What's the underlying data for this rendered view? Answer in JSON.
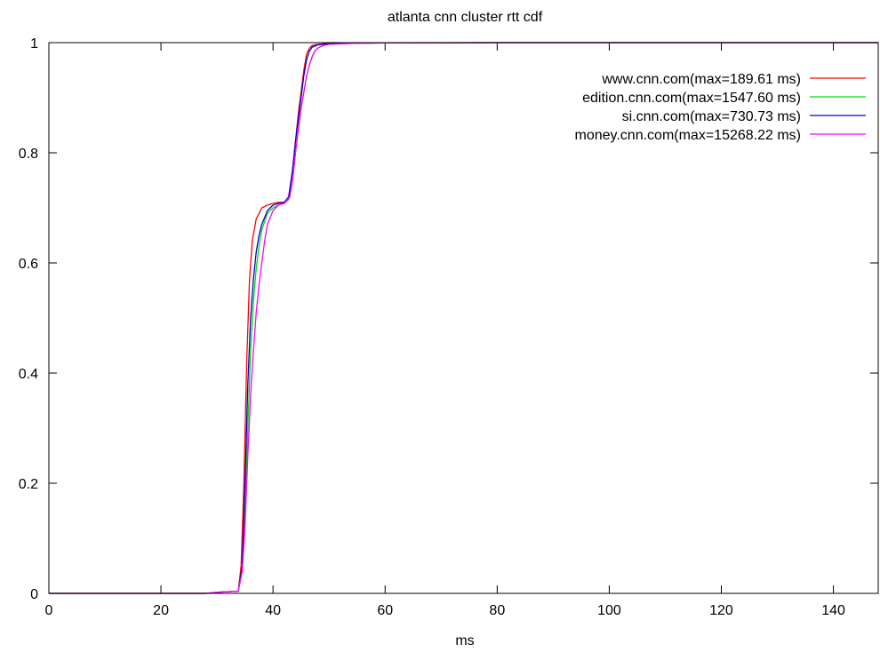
{
  "chart_data": {
    "type": "line",
    "title": "atlanta cnn cluster rtt cdf",
    "xlabel": "ms",
    "ylabel": "",
    "xlim": [
      0,
      148
    ],
    "ylim": [
      0,
      1
    ],
    "xticks": [
      0,
      20,
      40,
      60,
      80,
      100,
      120,
      140
    ],
    "yticks": [
      0,
      0.2,
      0.4,
      0.6,
      0.8,
      1
    ],
    "grid": false,
    "legend_position": "top-right",
    "series": [
      {
        "name": "www.cnn.com(max=189.61 ms)",
        "color": "#ff0000",
        "x": [
          0,
          28,
          30,
          33.8,
          34.3,
          34.8,
          35.3,
          35.8,
          36.3,
          37,
          38,
          39,
          40,
          41,
          42,
          42.8,
          43.5,
          44,
          44.5,
          45,
          45.5,
          46,
          46.5,
          47,
          48,
          50,
          55,
          60,
          80,
          100,
          148
        ],
        "y": [
          0,
          0,
          0.002,
          0.004,
          0.05,
          0.2,
          0.42,
          0.57,
          0.64,
          0.68,
          0.7,
          0.705,
          0.708,
          0.71,
          0.71,
          0.72,
          0.77,
          0.82,
          0.87,
          0.91,
          0.95,
          0.98,
          0.99,
          0.995,
          0.997,
          0.999,
          0.9995,
          0.9998,
          1,
          1,
          1
        ]
      },
      {
        "name": "edition.cnn.com(max=1547.60 ms)",
        "color": "#00dd00",
        "x": [
          0,
          28,
          30,
          33.8,
          34.5,
          35,
          35.5,
          36,
          36.5,
          37,
          37.5,
          38,
          39,
          40,
          41,
          42,
          42.8,
          43.5,
          44,
          44.5,
          45,
          45.5,
          46,
          46.5,
          47,
          47.5,
          48,
          49,
          50,
          55,
          60,
          80,
          100,
          148
        ],
        "y": [
          0,
          0,
          0.002,
          0.004,
          0.05,
          0.15,
          0.3,
          0.44,
          0.53,
          0.59,
          0.63,
          0.66,
          0.69,
          0.7,
          0.705,
          0.708,
          0.715,
          0.75,
          0.8,
          0.84,
          0.88,
          0.91,
          0.94,
          0.96,
          0.975,
          0.985,
          0.99,
          0.995,
          0.997,
          0.999,
          0.9995,
          1,
          1,
          1
        ]
      },
      {
        "name": "si.cnn.com(max=730.73 ms)",
        "color": "#0000cc",
        "x": [
          0,
          28,
          30,
          33.8,
          34.5,
          35,
          35.5,
          36,
          36.5,
          37,
          37.5,
          38,
          39,
          40,
          41,
          42,
          42.8,
          43.5,
          44,
          44.5,
          45,
          45.5,
          46,
          46.5,
          47,
          48,
          50,
          55,
          60,
          80,
          100,
          148
        ],
        "y": [
          0,
          0,
          0.002,
          0.004,
          0.05,
          0.2,
          0.38,
          0.5,
          0.57,
          0.62,
          0.65,
          0.67,
          0.695,
          0.705,
          0.708,
          0.71,
          0.72,
          0.77,
          0.82,
          0.86,
          0.9,
          0.94,
          0.97,
          0.985,
          0.992,
          0.996,
          0.998,
          0.999,
          0.9995,
          1,
          1,
          1
        ]
      },
      {
        "name": "money.cnn.com(max=15268.22 ms)",
        "color": "#ff00ff",
        "x": [
          0,
          28,
          30,
          33.8,
          34.5,
          35,
          35.5,
          36,
          36.5,
          37,
          37.5,
          38,
          38.5,
          39,
          40,
          41,
          42,
          43,
          43.5,
          44,
          44.5,
          45,
          45.5,
          46,
          46.5,
          47,
          47.5,
          48,
          49,
          50,
          55,
          60,
          80,
          100,
          148
        ],
        "y": [
          0,
          0,
          0.002,
          0.004,
          0.04,
          0.12,
          0.25,
          0.36,
          0.44,
          0.51,
          0.56,
          0.6,
          0.64,
          0.67,
          0.695,
          0.705,
          0.708,
          0.72,
          0.75,
          0.8,
          0.84,
          0.88,
          0.91,
          0.94,
          0.96,
          0.975,
          0.985,
          0.99,
          0.995,
          0.997,
          0.999,
          0.9995,
          1,
          1,
          1
        ]
      }
    ]
  }
}
